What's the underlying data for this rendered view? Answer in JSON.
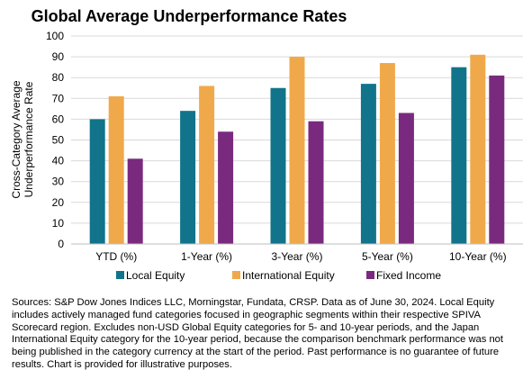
{
  "chart_data": {
    "type": "bar",
    "title": "Global Average Underperformance Rates",
    "ylabel_lines": [
      "Cross-Category Average",
      "Underperformance Rate"
    ],
    "categories": [
      "YTD (%)",
      "1-Year (%)",
      "3-Year (%)",
      "5-Year (%)",
      "10-Year (%)"
    ],
    "series": [
      {
        "name": "Local Equity",
        "color": "#11748a",
        "values": [
          60,
          64,
          75,
          77,
          85
        ]
      },
      {
        "name": "International Equity",
        "color": "#f0a94a",
        "values": [
          71,
          76,
          90,
          87,
          91
        ]
      },
      {
        "name": "Fixed Income",
        "color": "#7a2a7e",
        "values": [
          41,
          54,
          59,
          63,
          81
        ]
      }
    ],
    "ylim": [
      0,
      100
    ],
    "yticks": [
      0,
      10,
      20,
      30,
      40,
      50,
      60,
      70,
      80,
      90,
      100
    ],
    "grid": true,
    "legend": "bottom"
  },
  "note": "Sources: S&P Dow Jones Indices LLC, Morningstar, Fundata, CRSP.  Data as of June 30, 2024.  Local Equity includes actively managed fund categories focused in geographic segments within their respective SPIVA Scorecard region.  Excludes non-USD Global Equity categories for 5- and 10-year periods, and the Japan International Equity category for the 10-year period, because the comparison benchmark performance was not being published in the category currency at the start of the period.  Past performance is no guarantee of future results.  Chart is provided for illustrative purposes."
}
